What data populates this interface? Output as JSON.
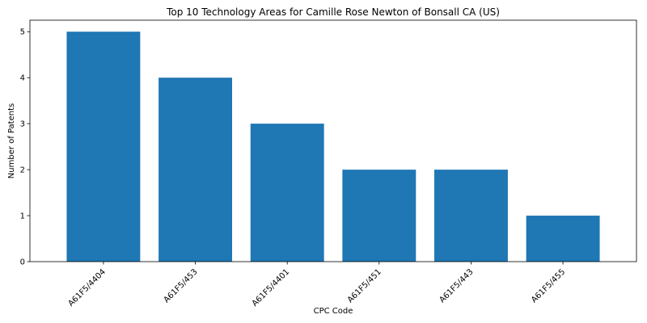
{
  "chart_data": {
    "type": "bar",
    "title": "Top 10 Technology Areas for Camille Rose Newton of Bonsall CA (US)",
    "xlabel": "CPC Code",
    "ylabel": "Number of Patents",
    "categories": [
      "A61F5/4404",
      "A61F5/453",
      "A61F5/4401",
      "A61F5/451",
      "A61F5/443",
      "A61F5/455"
    ],
    "values": [
      5,
      4,
      3,
      2,
      2,
      1
    ],
    "ylim": [
      0,
      5.25
    ],
    "yticks": [
      0,
      1,
      2,
      3,
      4,
      5
    ],
    "bar_color": "#1f77b4",
    "grid": false,
    "legend": "none"
  }
}
